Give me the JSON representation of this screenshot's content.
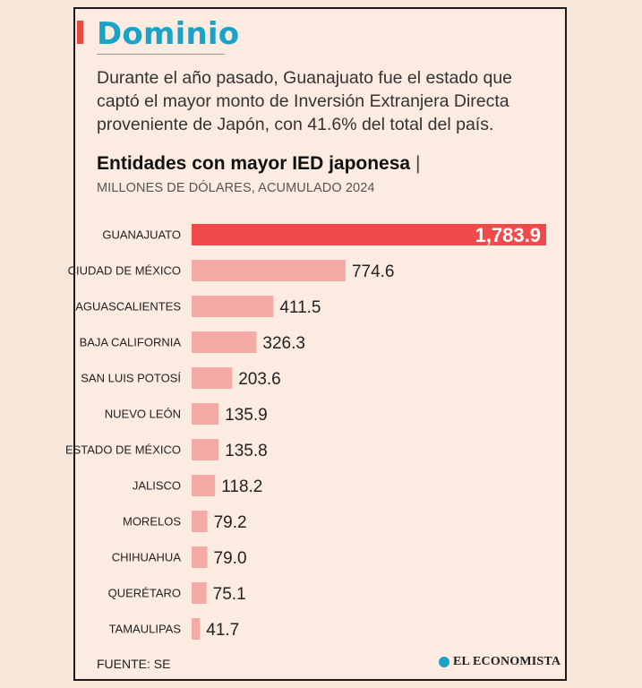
{
  "header": {
    "title": "Dominio",
    "intro": "Durante el año pasado, Guanajuato fue el estado que captó el mayor monto de Inversión Extranjera Directa proveniente de Japón, con 41.6% del total del país."
  },
  "colors": {
    "title": "#1aa3c9",
    "accent": "#e8473f",
    "highlight_bar": "#f04a4a",
    "bar": "#f5aba5",
    "background": "#fbebe1"
  },
  "chart_data": {
    "type": "bar",
    "orientation": "horizontal",
    "title": "Entidades con mayor IED japonesa",
    "title_separator": "|",
    "subtitle": "MILLONES DE DÓLARES, ACUMULADO 2024",
    "categories": [
      "GUANAJUATO",
      "CIUDAD DE MÉXICO",
      "AGUASCALIENTES",
      "BAJA CALIFORNIA",
      "SAN LUIS POTOSÍ",
      "NUEVO LEÓN",
      "ESTADO DE MÉXICO",
      "JALISCO",
      "MORELOS",
      "CHIHUAHUA",
      "QUERÉTARO",
      "TAMAULIPAS"
    ],
    "values": [
      1783.9,
      774.6,
      411.5,
      326.3,
      203.6,
      135.9,
      135.8,
      118.2,
      79.2,
      79.0,
      75.1,
      41.7
    ],
    "value_labels": [
      "1,783.9",
      "774.6",
      "411.5",
      "326.3",
      "203.6",
      "135.9",
      "135.8",
      "118.2",
      "79.2",
      "79.0",
      "75.1",
      "41.7"
    ],
    "highlight_index": 0,
    "xlim": [
      0,
      1783.9
    ],
    "grid": false,
    "legend": "none"
  },
  "footer": {
    "source": "FUENTE: SE",
    "logo_text": "EL ECONOMISTA"
  }
}
